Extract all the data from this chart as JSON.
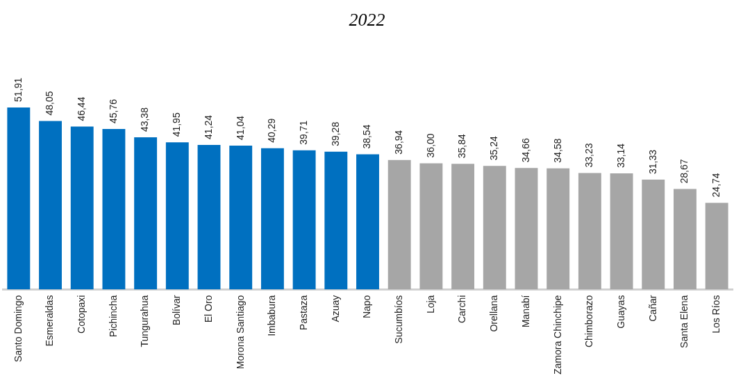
{
  "chart_data": {
    "type": "bar",
    "title": "2022",
    "categories": [
      "Santo Domingo",
      "Esmeraldas",
      "Cotopaxi",
      "Pichincha",
      "Tungurahua",
      "Bolívar",
      "El Oro",
      "Morona Santiago",
      "Imbabura",
      "Pastaza",
      "Azuay",
      "Napo",
      "Sucumbíos",
      "Loja",
      "Carchi",
      "Orellana",
      "Manabí",
      "Zamora Chinchipe",
      "Chimborazo",
      "Guayas",
      "Cañar",
      "Santa Elena",
      "Los Ríos"
    ],
    "values": [
      51.91,
      48.05,
      46.44,
      45.76,
      43.38,
      41.95,
      41.24,
      41.04,
      40.29,
      39.71,
      39.28,
      38.54,
      36.94,
      36.0,
      35.84,
      35.24,
      34.66,
      34.58,
      33.23,
      33.14,
      31.33,
      28.67,
      24.74
    ],
    "colors": [
      "#0070c0",
      "#0070c0",
      "#0070c0",
      "#0070c0",
      "#0070c0",
      "#0070c0",
      "#0070c0",
      "#0070c0",
      "#0070c0",
      "#0070c0",
      "#0070c0",
      "#0070c0",
      "#a6a6a6",
      "#a6a6a6",
      "#a6a6a6",
      "#a6a6a6",
      "#a6a6a6",
      "#a6a6a6",
      "#a6a6a6",
      "#a6a6a6",
      "#a6a6a6",
      "#a6a6a6",
      "#a6a6a6"
    ],
    "value_labels": [
      "51,91",
      "48,05",
      "46,44",
      "45,76",
      "43,38",
      "41,95",
      "41,24",
      "41,04",
      "40,29",
      "39,71",
      "39,28",
      "38,54",
      "36,94",
      "36,00",
      "35,84",
      "35,24",
      "34,66",
      "34,58",
      "33,23",
      "33,14",
      "31,33",
      "28,67",
      "24,74"
    ],
    "tick_labels": "x",
    "grid": false,
    "legend": false
  }
}
